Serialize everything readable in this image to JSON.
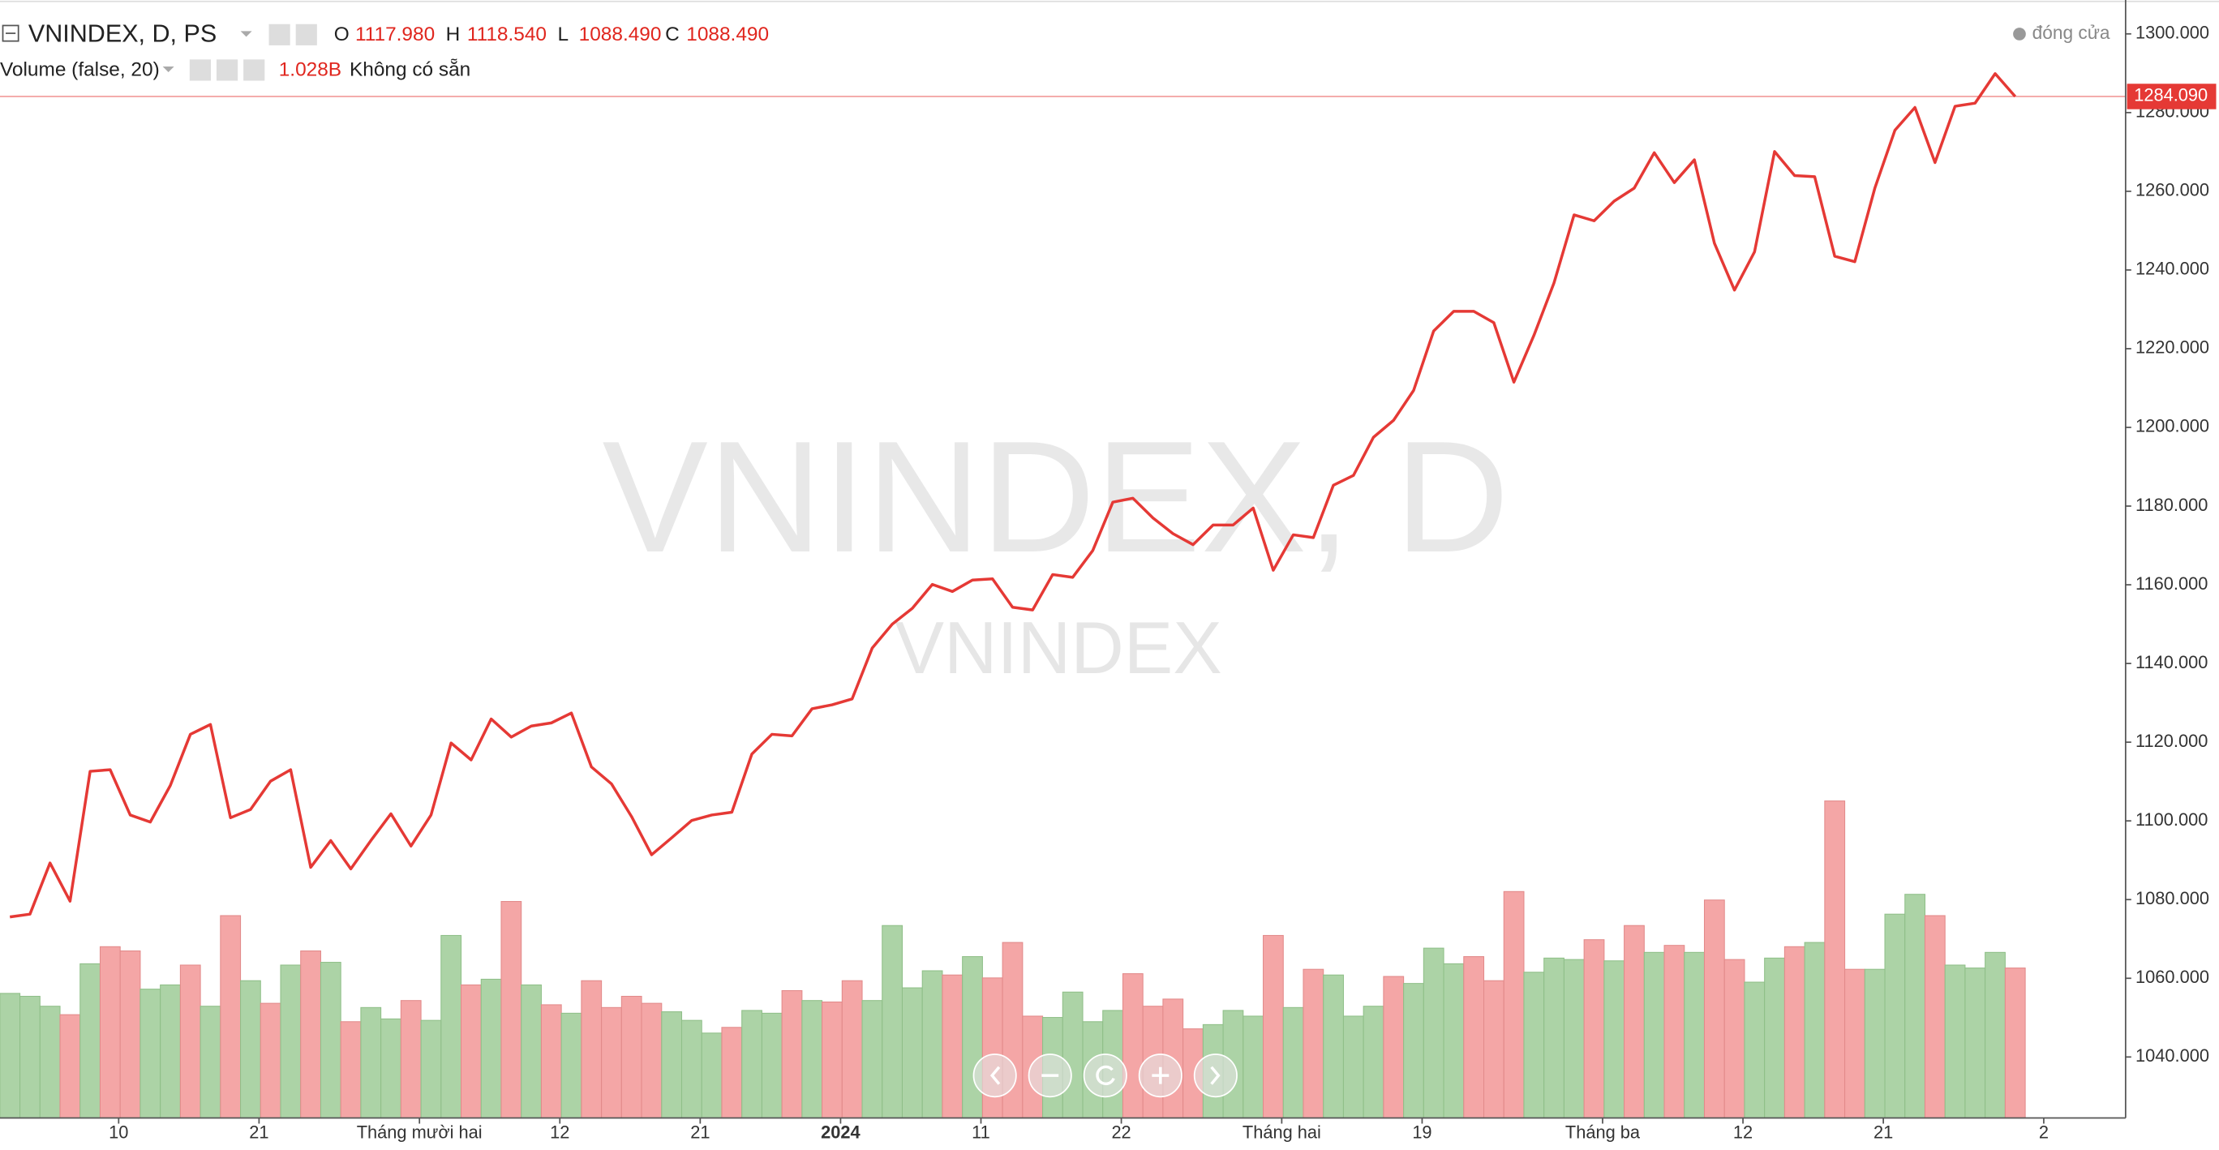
{
  "chart_data": {
    "type": "line",
    "title": "VNINDEX, D, PS",
    "watermark": "VNINDEX, D",
    "watermark_sub": "VNINDEX",
    "ohlc": [
      {
        "label": "O",
        "value": "1117.980"
      },
      {
        "label": "H",
        "value": "1118.540"
      },
      {
        "label": "L",
        "value": "1088.490"
      },
      {
        "label": "C",
        "value": "1088.490"
      }
    ],
    "status": "đóng cửa",
    "last_label": {
      "value": 1284.09,
      "label": "1284.090"
    },
    "categories": [
      null,
      null,
      null,
      null,
      null,
      "10",
      null,
      null,
      null,
      null,
      null,
      null,
      "21",
      null,
      null,
      null,
      null,
      null,
      null,
      null,
      "Tháng mười hai",
      null,
      null,
      null,
      null,
      null,
      null,
      "12",
      null,
      null,
      null,
      null,
      null,
      null,
      "21",
      null,
      null,
      null,
      null,
      null,
      null,
      "2024",
      null,
      null,
      null,
      null,
      null,
      null,
      "11",
      null,
      null,
      null,
      null,
      null,
      null,
      "22",
      null,
      null,
      null,
      null,
      null,
      null,
      null,
      "Tháng hai",
      null,
      null,
      null,
      null,
      null,
      null,
      "19",
      null,
      null,
      null,
      null,
      null,
      null,
      null,
      null,
      "Tháng ba",
      null,
      null,
      null,
      null,
      null,
      null,
      "12",
      null,
      null,
      null,
      null,
      null,
      null,
      "21",
      null,
      null,
      null,
      null,
      null,
      null,
      null,
      "2"
    ],
    "series": [
      {
        "name": "VNINDEX",
        "color": "#e53935",
        "values": [
          1075.6,
          1076.3,
          1089.3,
          1079.6,
          1112.6,
          1113.0,
          1101.5,
          1099.7,
          1109.0,
          1122.0,
          1124.5,
          1100.8,
          1102.9,
          1110.1,
          1113.0,
          1088.2,
          1095.0,
          1087.8,
          1095.0,
          1101.8,
          1093.6,
          1101.5,
          1119.8,
          1115.5,
          1125.9,
          1121.3,
          1124.1,
          1124.9,
          1127.4,
          1113.7,
          1109.4,
          1101.1,
          1091.4,
          1095.7,
          1100.1,
          1101.5,
          1102.2,
          1117.0,
          1122.0,
          1121.6,
          1128.5,
          1129.5,
          1131.0,
          1143.9,
          1150.0,
          1154.0,
          1160.1,
          1158.3,
          1161.2,
          1161.5,
          1154.3,
          1153.6,
          1162.6,
          1161.9,
          1168.7,
          1181.0,
          1182.0,
          1177.0,
          1173.0,
          1170.2,
          1175.2,
          1175.2,
          1179.5,
          1163.7,
          1172.7,
          1172.0,
          1185.3,
          1187.8,
          1197.5,
          1201.8,
          1209.4,
          1224.5,
          1229.5,
          1229.5,
          1226.6,
          1211.5,
          1223.4,
          1236.7,
          1254.0,
          1252.5,
          1257.5,
          1260.8,
          1269.8,
          1262.2,
          1268.0,
          1246.8,
          1234.9,
          1244.6,
          1270.1,
          1264.0,
          1263.7,
          1243.5,
          1242.1,
          1260.8,
          1275.5,
          1281.3,
          1267.3,
          1281.6,
          1282.4,
          1289.9,
          1284.09,
          null
        ]
      }
    ],
    "volume": {
      "name": "Volume (false, 20)",
      "last_label": "1.028B",
      "status": "Không có sẵn",
      "values": [
        0.854,
        0.834,
        0.766,
        0.708,
        1.057,
        1.174,
        1.145,
        0.883,
        0.912,
        1.048,
        0.766,
        1.387,
        0.941,
        0.786,
        1.048,
        1.145,
        1.067,
        0.66,
        0.757,
        0.679,
        0.805,
        0.669,
        1.251,
        0.912,
        0.951,
        1.484,
        0.912,
        0.776,
        0.718,
        0.941,
        0.757,
        0.834,
        0.786,
        0.728,
        0.669,
        0.582,
        0.621,
        0.737,
        0.718,
        0.873,
        0.805,
        0.795,
        0.941,
        0.805,
        1.319,
        0.892,
        1.009,
        0.98,
        1.106,
        0.96,
        1.203,
        0.698,
        0.689,
        0.863,
        0.66,
        0.737,
        0.989,
        0.766,
        0.815,
        0.611,
        0.64,
        0.737,
        0.698,
        1.251,
        0.757,
        1.019,
        0.98,
        0.698,
        0.766,
        0.97,
        0.922,
        1.164,
        1.057,
        1.106,
        0.941,
        1.552,
        0.999,
        1.096,
        1.086,
        1.222,
        1.077,
        1.319,
        1.135,
        1.183,
        1.135,
        1.494,
        1.086,
        0.931,
        1.096,
        1.174,
        1.203,
        2.173,
        1.019,
        1.019,
        1.397,
        1.533,
        1.387,
        1.048,
        1.028,
        1.135,
        1.028,
        null
      ],
      "colors": [
        "#acd3a6",
        "#acd3a6",
        "#acd3a6",
        "#f4a6a6",
        "#acd3a6",
        "#f4a6a6",
        "#f4a6a6",
        "#acd3a6",
        "#acd3a6",
        "#f4a6a6",
        "#acd3a6",
        "#f4a6a6",
        "#acd3a6",
        "#f4a6a6",
        "#acd3a6",
        "#f4a6a6",
        "#acd3a6",
        "#f4a6a6",
        "#acd3a6",
        "#acd3a6",
        "#f4a6a6",
        "#acd3a6",
        "#acd3a6",
        "#f4a6a6",
        "#acd3a6",
        "#f4a6a6",
        "#acd3a6",
        "#f4a6a6",
        "#acd3a6",
        "#f4a6a6",
        "#f4a6a6",
        "#f4a6a6",
        "#f4a6a6",
        "#acd3a6",
        "#acd3a6",
        "#acd3a6",
        "#f4a6a6",
        "#acd3a6",
        "#acd3a6",
        "#f4a6a6",
        "#acd3a6",
        "#f4a6a6",
        "#f4a6a6",
        "#acd3a6",
        "#acd3a6",
        "#acd3a6",
        "#acd3a6",
        "#f4a6a6",
        "#acd3a6",
        "#f4a6a6",
        "#f4a6a6",
        "#f4a6a6",
        "#acd3a6",
        "#acd3a6",
        "#acd3a6",
        "#acd3a6",
        "#f4a6a6",
        "#f4a6a6",
        "#f4a6a6",
        "#f4a6a6",
        "#acd3a6",
        "#acd3a6",
        "#acd3a6",
        "#f4a6a6",
        "#acd3a6",
        "#f4a6a6",
        "#acd3a6",
        "#acd3a6",
        "#acd3a6",
        "#f4a6a6",
        "#acd3a6",
        "#acd3a6",
        "#acd3a6",
        "#f4a6a6",
        "#f4a6a6",
        "#f4a6a6",
        "#acd3a6",
        "#acd3a6",
        "#acd3a6",
        "#f4a6a6",
        "#acd3a6",
        "#f4a6a6",
        "#acd3a6",
        "#f4a6a6",
        "#acd3a6",
        "#f4a6a6",
        "#f4a6a6",
        "#acd3a6",
        "#acd3a6",
        "#f4a6a6",
        "#acd3a6",
        "#f4a6a6",
        "#f4a6a6",
        "#acd3a6",
        "#acd3a6",
        "#acd3a6",
        "#f4a6a6",
        "#acd3a6",
        "#acd3a6",
        "#acd3a6",
        "#f4a6a6",
        null
      ]
    },
    "ylim": [
      1024.5,
      1308.6
    ],
    "yticks": [
      {
        "value": 1040,
        "label": "1040.000"
      },
      {
        "value": 1060,
        "label": "1060.000"
      },
      {
        "value": 1080,
        "label": "1080.000"
      },
      {
        "value": 1100,
        "label": "1100.000"
      },
      {
        "value": 1120,
        "label": "1120.000"
      },
      {
        "value": 1140,
        "label": "1140.000"
      },
      {
        "value": 1160,
        "label": "1160.000"
      },
      {
        "value": 1180,
        "label": "1180.000"
      },
      {
        "value": 1200,
        "label": "1200.000"
      },
      {
        "value": 1220,
        "label": "1220.000"
      },
      {
        "value": 1240,
        "label": "1240.000"
      },
      {
        "value": 1260,
        "label": "1260.000"
      },
      {
        "value": 1280,
        "label": "1280.000"
      },
      {
        "value": 1300,
        "label": "1300.000"
      }
    ],
    "grid": false
  }
}
